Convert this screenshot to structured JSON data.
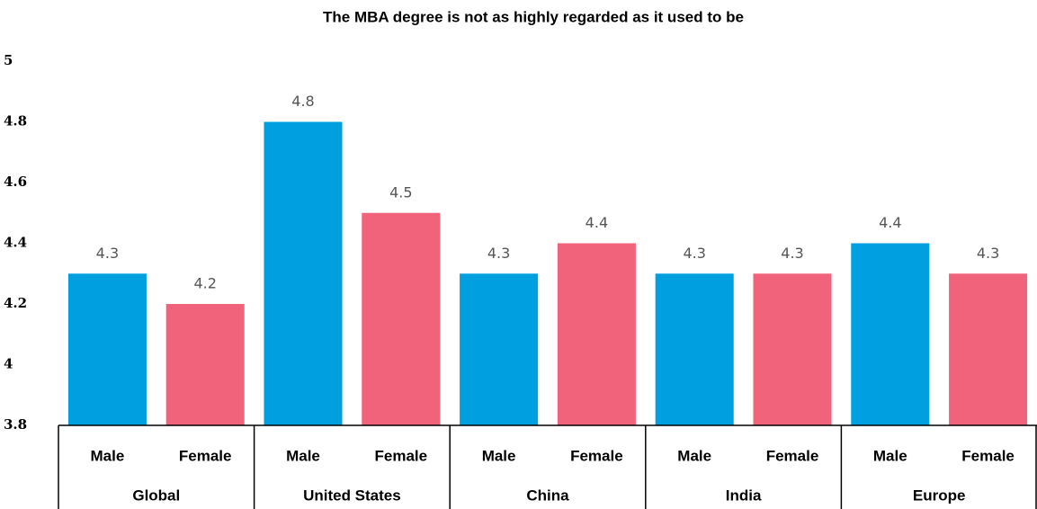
{
  "chart_data": {
    "type": "bar",
    "title": "The MBA degree is not as highly regarded as it used to be",
    "categories": [
      "Global",
      "United States",
      "China",
      "India",
      "Europe"
    ],
    "series": [
      {
        "name": "Male",
        "color": "#00a0e0",
        "values": [
          4.3,
          4.8,
          4.3,
          4.3,
          4.4
        ]
      },
      {
        "name": "Female",
        "color": "#f0637a",
        "values": [
          4.2,
          4.5,
          4.4,
          4.3,
          4.3
        ]
      }
    ],
    "ylim": [
      3.8,
      5
    ],
    "yticks": [
      3.8,
      4,
      4.2,
      4.4,
      4.6,
      4.8,
      5
    ],
    "grid": false
  }
}
